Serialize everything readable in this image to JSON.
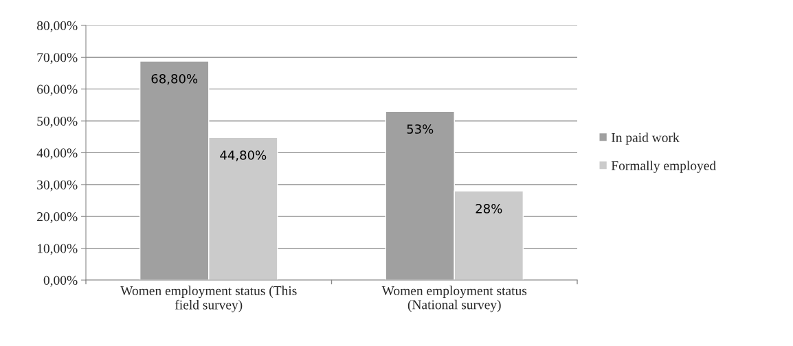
{
  "chart_data": {
    "type": "bar",
    "categories": [
      "Women employment status (This\nfield survey)",
      "Women employment status\n(National survey)"
    ],
    "series": [
      {
        "name": "In paid work",
        "color": "#a0a0a0",
        "values": [
          68.8,
          53
        ],
        "value_labels": [
          "68,80%",
          "53%"
        ]
      },
      {
        "name": "Formally employed",
        "color": "#cbcbcb",
        "values": [
          44.8,
          28
        ],
        "value_labels": [
          "44,80%",
          "28%"
        ]
      }
    ],
    "ylim": [
      0,
      80
    ],
    "yticks": [
      {
        "value": 0,
        "label": "0,00%"
      },
      {
        "value": 10,
        "label": "10,00%"
      },
      {
        "value": 20,
        "label": "20,00%"
      },
      {
        "value": 30,
        "label": "30,00%"
      },
      {
        "value": 40,
        "label": "40,00%"
      },
      {
        "value": 50,
        "label": "50,00%"
      },
      {
        "value": 60,
        "label": "60,00%"
      },
      {
        "value": 70,
        "label": "70,00%"
      },
      {
        "value": 80,
        "label": "80,00%"
      }
    ],
    "grid": "y",
    "legend": "right"
  }
}
